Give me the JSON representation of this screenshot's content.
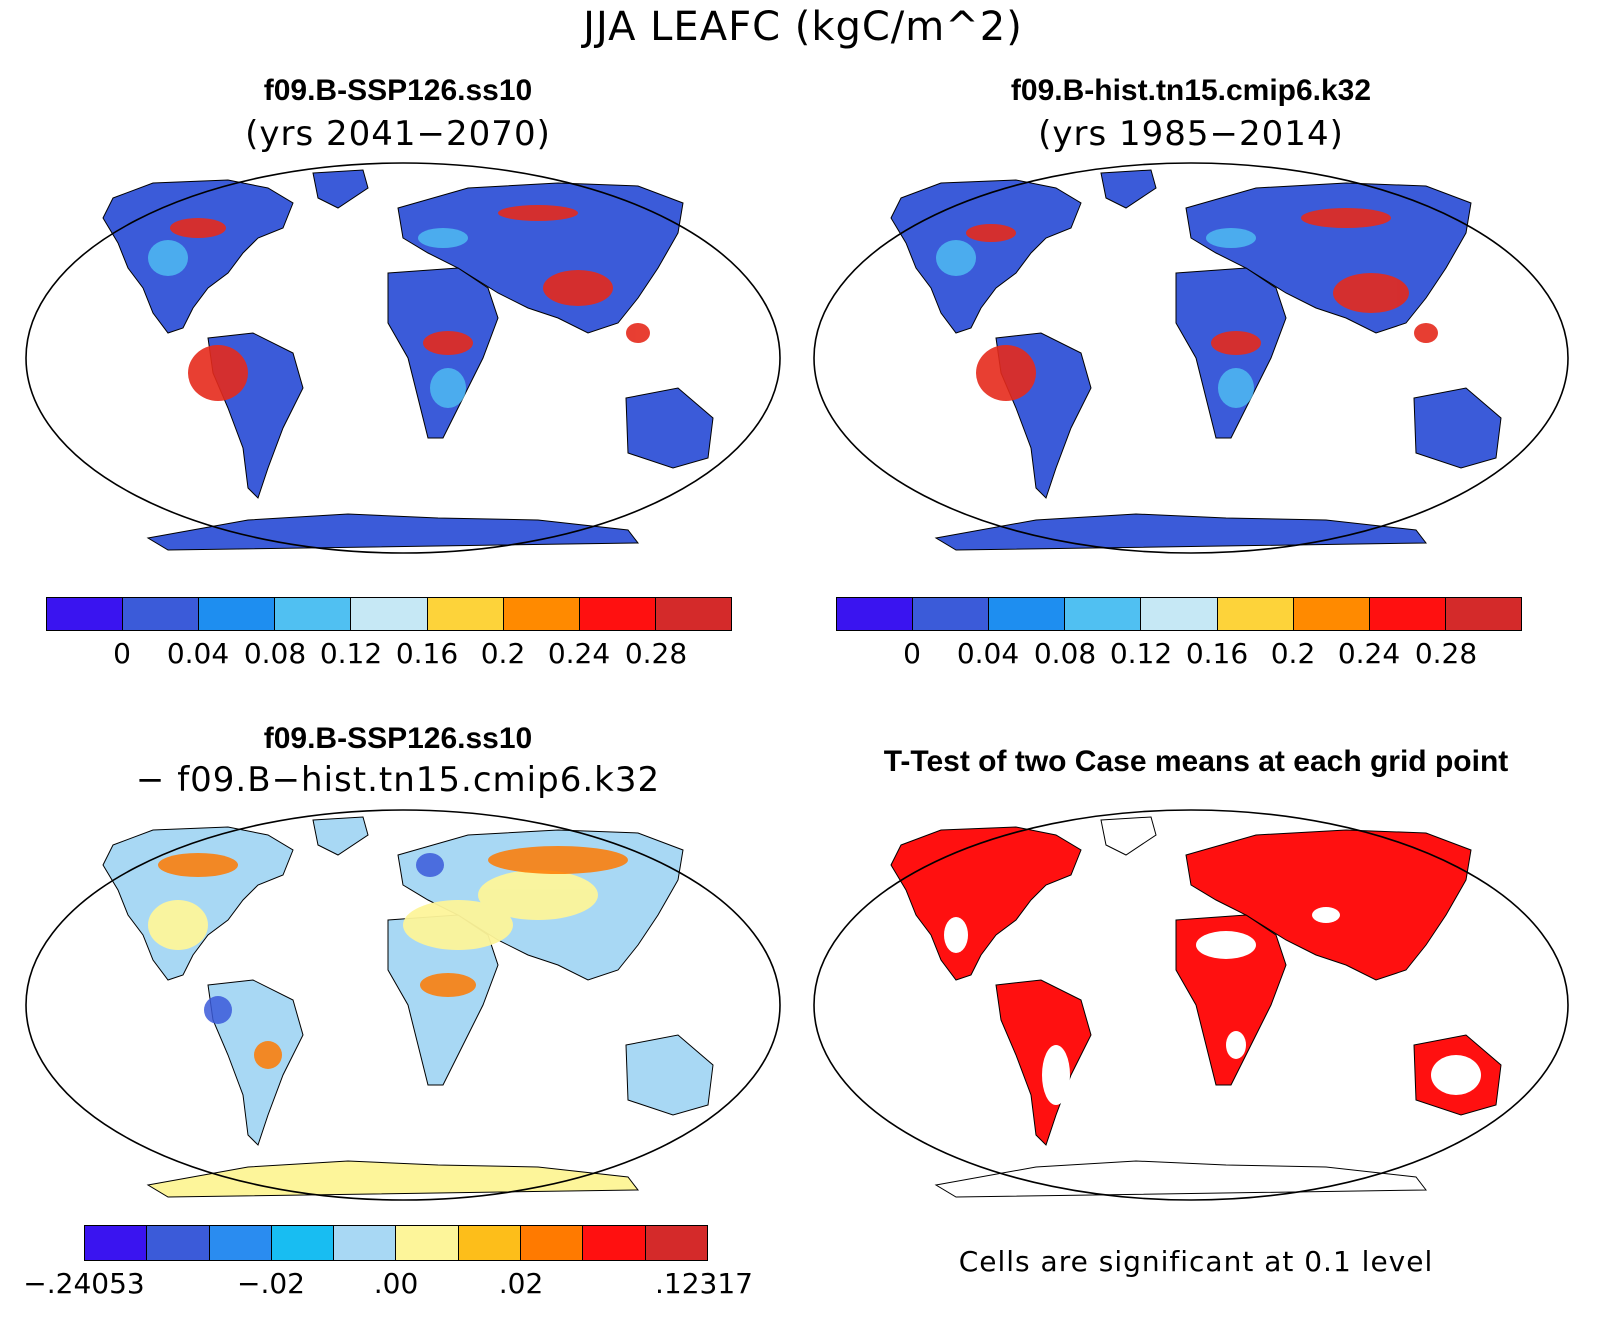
{
  "title": "JJA LEAFC (kgC/m^2)",
  "panels": {
    "top_left": {
      "title_line1": "f09.B-SSP126.ss10",
      "title_line2": "(yrs 2041−2070)"
    },
    "top_right": {
      "title_line1": "f09.B-hist.tn15.cmip6.k32",
      "title_line2": "(yrs 1985−2014)"
    },
    "bottom_left": {
      "title_line1": "f09.B-SSP126.ss10",
      "title_line2": "− f09.B−hist.tn15.cmip6.k32"
    },
    "bottom_right": {
      "title_line1": "T-Test of two Case means at each grid point",
      "note": "Cells are significant at 0.1 level"
    }
  },
  "colorbars": {
    "absolute": {
      "colors": [
        "#3a14f0",
        "#3b5bd9",
        "#1e8ef0",
        "#50c0f2",
        "#c6e8f5",
        "#fdd33a",
        "#ff8a00",
        "#ff1010",
        "#d42a2a"
      ],
      "tick_labels": [
        "0",
        "0.04",
        "0.08",
        "0.12",
        "0.16",
        "0.2",
        "0.24",
        "0.28"
      ]
    },
    "difference": {
      "colors": [
        "#3a14f0",
        "#3b5bd9",
        "#2a8cf0",
        "#18bdf2",
        "#a8d8f4",
        "#fdf59a",
        "#fdbe1a",
        "#ff7a00",
        "#ff1010",
        "#d42a2a"
      ],
      "tick_labels": [
        "−.24053",
        "−.02",
        ".00",
        ".02",
        ".12317"
      ]
    }
  },
  "map_fill": {
    "top_left": "#3b5bd9",
    "top_right": "#3b5bd9",
    "bottom_left": "#a8d8f4",
    "bottom_right": "#ff1010"
  },
  "chart_data": [
    {
      "type": "heatmap",
      "title": "f09.B-SSP126.ss10 (yrs 2041−2070)",
      "legend": "bottom",
      "contour_levels": [
        0,
        0.04,
        0.08,
        0.12,
        0.16,
        0.2,
        0.24,
        0.28
      ]
    },
    {
      "type": "heatmap",
      "title": "f09.B-hist.tn15.cmip6.k32 (yrs 1985−2014)",
      "legend": "bottom",
      "contour_levels": [
        0,
        0.04,
        0.08,
        0.12,
        0.16,
        0.2,
        0.24,
        0.28
      ]
    },
    {
      "type": "heatmap",
      "title": "f09.B-SSP126.ss10 − f09.B−hist.tn15.cmip6.k32",
      "legend": "bottom",
      "contour_levels": [
        -0.24053,
        -0.02,
        0.0,
        0.02,
        0.12317
      ]
    },
    {
      "type": "heatmap",
      "title": "T-Test of two Case means at each grid point",
      "significance_level": 0.1
    }
  ]
}
